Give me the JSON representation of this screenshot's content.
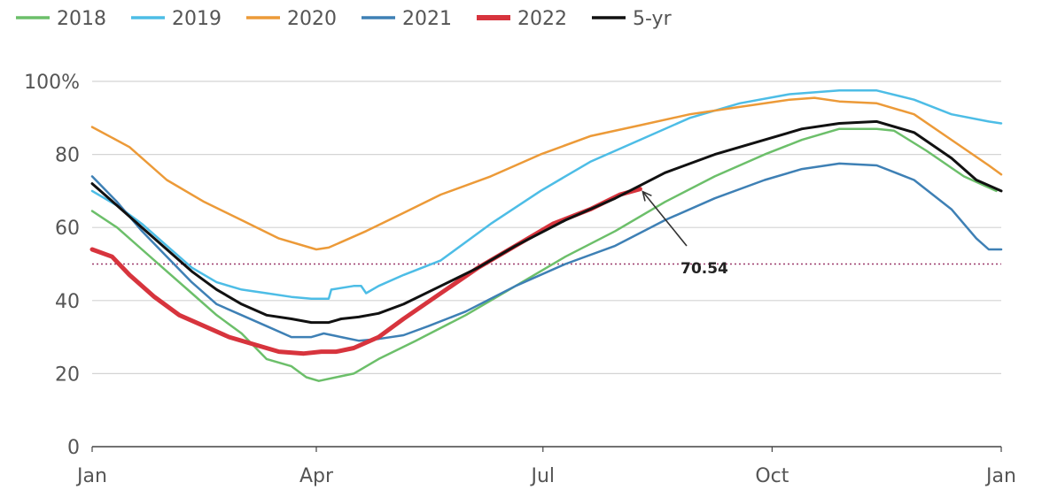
{
  "chart_data": {
    "type": "line",
    "title": "",
    "xlabel": "",
    "ylabel": "",
    "x_ticks": [
      {
        "label": "Jan",
        "day": 0
      },
      {
        "label": "Apr",
        "day": 90
      },
      {
        "label": "Jul",
        "day": 181
      },
      {
        "label": "Oct",
        "day": 273
      },
      {
        "label": "Jan",
        "day": 365
      }
    ],
    "xlim": [
      0,
      365
    ],
    "y_ticks": [
      0,
      20,
      40,
      60,
      80,
      100
    ],
    "y_tick_labels": [
      "0",
      "20",
      "40",
      "60",
      "80",
      "100%"
    ],
    "ylim": [
      0,
      100
    ],
    "grid": "horizontal",
    "legend_position": "top-left",
    "reference_line": {
      "value": 50,
      "style": "dotted",
      "color": "#9b3a6b"
    },
    "annotation": {
      "text": "70.54",
      "day": 220,
      "value": 70.54
    },
    "series": [
      {
        "name": "2018",
        "color": "#6cbf6a",
        "width": 2.5,
        "points": [
          [
            0,
            64.5
          ],
          [
            10,
            60
          ],
          [
            20,
            54
          ],
          [
            30,
            48
          ],
          [
            40,
            42
          ],
          [
            50,
            36
          ],
          [
            60,
            31
          ],
          [
            70,
            24
          ],
          [
            80,
            22
          ],
          [
            86,
            19
          ],
          [
            91,
            18
          ],
          [
            98,
            19
          ],
          [
            105,
            20
          ],
          [
            115,
            24
          ],
          [
            130,
            29
          ],
          [
            150,
            36
          ],
          [
            170,
            44
          ],
          [
            190,
            52
          ],
          [
            210,
            59
          ],
          [
            230,
            67
          ],
          [
            250,
            74
          ],
          [
            270,
            80
          ],
          [
            285,
            84
          ],
          [
            300,
            87
          ],
          [
            315,
            87
          ],
          [
            322,
            86.5
          ],
          [
            335,
            81
          ],
          [
            350,
            74
          ],
          [
            363,
            70
          ]
        ]
      },
      {
        "name": "2019",
        "color": "#4dbde6",
        "width": 2.5,
        "points": [
          [
            0,
            70
          ],
          [
            10,
            66
          ],
          [
            20,
            61
          ],
          [
            30,
            55
          ],
          [
            40,
            49
          ],
          [
            50,
            45
          ],
          [
            60,
            43
          ],
          [
            70,
            42
          ],
          [
            80,
            41
          ],
          [
            88,
            40.5
          ],
          [
            95,
            40.5
          ],
          [
            96,
            43
          ],
          [
            105,
            44
          ],
          [
            108,
            44
          ],
          [
            110,
            42
          ],
          [
            115,
            44
          ],
          [
            125,
            47
          ],
          [
            140,
            51
          ],
          [
            160,
            61
          ],
          [
            180,
            70
          ],
          [
            200,
            78
          ],
          [
            220,
            84
          ],
          [
            240,
            90
          ],
          [
            260,
            94
          ],
          [
            280,
            96.5
          ],
          [
            300,
            97.5
          ],
          [
            315,
            97.5
          ],
          [
            330,
            95
          ],
          [
            345,
            91
          ],
          [
            360,
            89
          ],
          [
            365,
            88.5
          ]
        ]
      },
      {
        "name": "2020",
        "color": "#ec9a38",
        "width": 2.5,
        "points": [
          [
            0,
            87.5
          ],
          [
            15,
            82
          ],
          [
            30,
            73
          ],
          [
            45,
            67
          ],
          [
            60,
            62
          ],
          [
            75,
            57
          ],
          [
            90,
            54
          ],
          [
            95,
            54.5
          ],
          [
            100,
            56
          ],
          [
            110,
            59
          ],
          [
            125,
            64
          ],
          [
            140,
            69
          ],
          [
            160,
            74
          ],
          [
            180,
            80
          ],
          [
            200,
            85
          ],
          [
            220,
            88
          ],
          [
            240,
            91
          ],
          [
            260,
            93
          ],
          [
            280,
            95
          ],
          [
            290,
            95.5
          ],
          [
            300,
            94.5
          ],
          [
            315,
            94
          ],
          [
            330,
            91
          ],
          [
            345,
            84
          ],
          [
            360,
            77
          ],
          [
            365,
            74.5
          ]
        ]
      },
      {
        "name": "2021",
        "color": "#3e80b5",
        "width": 2.5,
        "points": [
          [
            0,
            74
          ],
          [
            10,
            67
          ],
          [
            20,
            59
          ],
          [
            30,
            52
          ],
          [
            40,
            45
          ],
          [
            50,
            39
          ],
          [
            60,
            36
          ],
          [
            70,
            33
          ],
          [
            80,
            30
          ],
          [
            88,
            30
          ],
          [
            93,
            31
          ],
          [
            100,
            30
          ],
          [
            107,
            29
          ],
          [
            115,
            29.5
          ],
          [
            125,
            30.5
          ],
          [
            135,
            33
          ],
          [
            150,
            37
          ],
          [
            170,
            44
          ],
          [
            190,
            50
          ],
          [
            210,
            55
          ],
          [
            230,
            62
          ],
          [
            250,
            68
          ],
          [
            270,
            73
          ],
          [
            285,
            76
          ],
          [
            300,
            77.5
          ],
          [
            315,
            77
          ],
          [
            330,
            73
          ],
          [
            345,
            65
          ],
          [
            355,
            57
          ],
          [
            360,
            54
          ],
          [
            365,
            54
          ]
        ]
      },
      {
        "name": "2022",
        "color": "#d7343d",
        "width": 5,
        "points": [
          [
            0,
            54
          ],
          [
            8,
            52
          ],
          [
            15,
            47
          ],
          [
            25,
            41
          ],
          [
            35,
            36
          ],
          [
            45,
            33
          ],
          [
            55,
            30
          ],
          [
            65,
            28
          ],
          [
            75,
            26
          ],
          [
            85,
            25.5
          ],
          [
            92,
            26
          ],
          [
            98,
            26
          ],
          [
            105,
            27
          ],
          [
            115,
            30
          ],
          [
            125,
            35
          ],
          [
            140,
            42
          ],
          [
            155,
            49
          ],
          [
            170,
            55
          ],
          [
            185,
            61
          ],
          [
            200,
            65
          ],
          [
            212,
            69
          ],
          [
            220,
            70.54
          ]
        ]
      },
      {
        "name": "5-yr",
        "color": "#111111",
        "width": 3,
        "points": [
          [
            0,
            72
          ],
          [
            10,
            66
          ],
          [
            20,
            60
          ],
          [
            30,
            54
          ],
          [
            40,
            48
          ],
          [
            50,
            43
          ],
          [
            60,
            39
          ],
          [
            70,
            36
          ],
          [
            80,
            35
          ],
          [
            88,
            34
          ],
          [
            95,
            34
          ],
          [
            100,
            35
          ],
          [
            107,
            35.5
          ],
          [
            115,
            36.5
          ],
          [
            125,
            39
          ],
          [
            140,
            44
          ],
          [
            155,
            49
          ],
          [
            170,
            55
          ],
          [
            190,
            62
          ],
          [
            210,
            68
          ],
          [
            230,
            75
          ],
          [
            250,
            80
          ],
          [
            270,
            84
          ],
          [
            285,
            87
          ],
          [
            300,
            88.5
          ],
          [
            315,
            89
          ],
          [
            330,
            86
          ],
          [
            345,
            79
          ],
          [
            355,
            73
          ],
          [
            365,
            70
          ]
        ]
      }
    ]
  }
}
